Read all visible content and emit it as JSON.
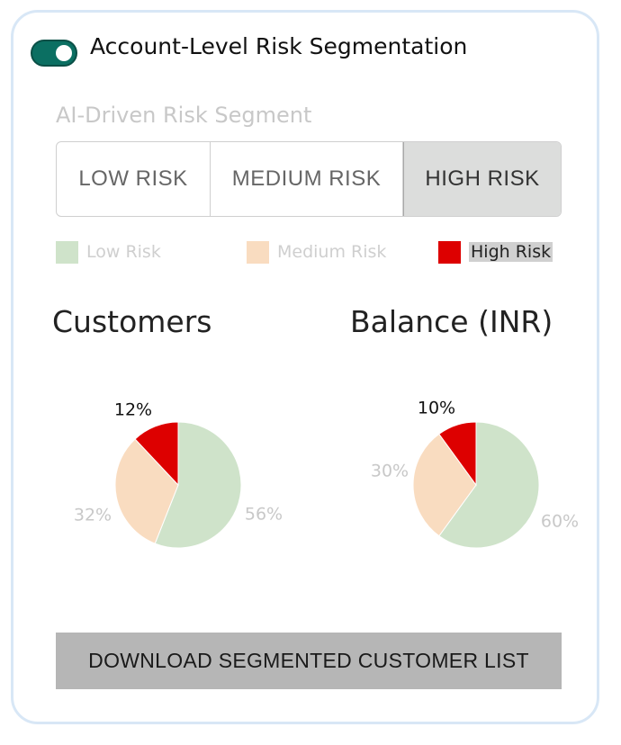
{
  "header": {
    "toggle_on": true,
    "title": "Account-Level Risk Segmentation"
  },
  "segment": {
    "label": "AI-Driven Risk Segment",
    "options": [
      "LOW RISK",
      "MEDIUM RISK",
      "HIGH RISK"
    ],
    "selected": "HIGH RISK"
  },
  "legend": [
    {
      "label": "Low Risk",
      "color": "#cfe3ca"
    },
    {
      "label": "Medium Risk",
      "color": "#f9dcc0"
    },
    {
      "label": "High Risk",
      "color": "#dd0000"
    }
  ],
  "chart_data": [
    {
      "type": "pie",
      "title": "Customers",
      "categories": [
        "Low Risk",
        "Medium Risk",
        "High Risk"
      ],
      "values": [
        56,
        32,
        12
      ],
      "labels": [
        "56%",
        "32%",
        "12%"
      ],
      "colors": [
        "#cfe3ca",
        "#f9dcc0",
        "#dd0000"
      ]
    },
    {
      "type": "pie",
      "title": "Balance (INR)",
      "categories": [
        "Low Risk",
        "Medium Risk",
        "High Risk"
      ],
      "values": [
        60,
        30,
        10
      ],
      "labels": [
        "60%",
        "30%",
        "10%"
      ],
      "colors": [
        "#cfe3ca",
        "#f9dcc0",
        "#dd0000"
      ]
    }
  ],
  "download_label": "DOWNLOAD SEGMENTED CUSTOMER LIST"
}
